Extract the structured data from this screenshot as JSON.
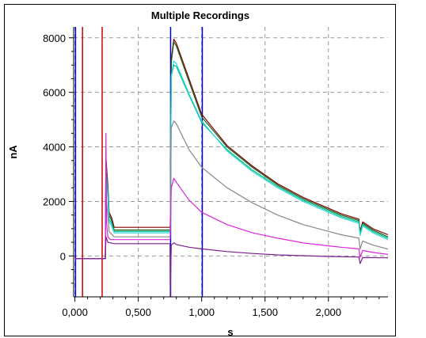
{
  "chart_data": {
    "type": "line",
    "title": "Multiple Recordings",
    "xlabel": "s",
    "ylabel": "nA",
    "xlim": [
      -0.01,
      2.47
    ],
    "ylim": [
      -1500,
      8400
    ],
    "grid": true,
    "grid_style": "dashed",
    "xticks": [
      0,
      0.5,
      1.0,
      1.5,
      2.0
    ],
    "xtick_labels": [
      "0,000",
      "0,500",
      "1,000",
      "1,500",
      "2,000"
    ],
    "yticks": [
      0,
      2000,
      4000,
      6000,
      8000
    ],
    "ytick_labels": [
      "0",
      "2000",
      "4000",
      "6000",
      "8000"
    ],
    "cursors": [
      {
        "x": 0.005,
        "color": "#0000cc"
      },
      {
        "x": 0.06,
        "color": "#cc0000"
      },
      {
        "x": 0.215,
        "color": "#cc0000"
      },
      {
        "x": 0.755,
        "color": "#0000cc"
      },
      {
        "x": 1.005,
        "color": "#0000cc"
      }
    ],
    "series": [
      {
        "color": "#800000",
        "values": [
          [
            0,
            -100
          ],
          [
            0.24,
            -100
          ],
          [
            0.245,
            3600
          ],
          [
            0.26,
            2600
          ],
          [
            0.27,
            1600
          ],
          [
            0.29,
            1400
          ],
          [
            0.31,
            1050
          ],
          [
            0.75,
            1050
          ],
          [
            0.752,
            1100
          ],
          [
            0.76,
            7200
          ],
          [
            0.78,
            7950
          ],
          [
            0.8,
            7800
          ],
          [
            0.9,
            6500
          ],
          [
            1.0,
            5200
          ],
          [
            1.2,
            4050
          ],
          [
            1.4,
            3300
          ],
          [
            1.6,
            2650
          ],
          [
            1.8,
            2150
          ],
          [
            2.0,
            1750
          ],
          [
            2.1,
            1550
          ],
          [
            2.24,
            1350
          ],
          [
            2.25,
            900
          ],
          [
            2.27,
            1250
          ],
          [
            2.35,
            1000
          ],
          [
            2.47,
            780
          ]
        ]
      },
      {
        "color": "#1a5c1a",
        "values": [
          [
            0,
            -100
          ],
          [
            0.24,
            -100
          ],
          [
            0.245,
            3500
          ],
          [
            0.26,
            2500
          ],
          [
            0.27,
            1500
          ],
          [
            0.29,
            1300
          ],
          [
            0.31,
            950
          ],
          [
            0.75,
            950
          ],
          [
            0.752,
            1000
          ],
          [
            0.76,
            7100
          ],
          [
            0.78,
            7850
          ],
          [
            0.8,
            7700
          ],
          [
            0.9,
            6400
          ],
          [
            1.0,
            5100
          ],
          [
            1.2,
            4000
          ],
          [
            1.4,
            3250
          ],
          [
            1.6,
            2600
          ],
          [
            1.8,
            2100
          ],
          [
            2.0,
            1700
          ],
          [
            2.1,
            1500
          ],
          [
            2.24,
            1300
          ],
          [
            2.25,
            850
          ],
          [
            2.27,
            1200
          ],
          [
            2.35,
            950
          ],
          [
            2.47,
            700
          ]
        ]
      },
      {
        "color": "#00bb88",
        "values": [
          [
            0,
            -100
          ],
          [
            0.24,
            -100
          ],
          [
            0.245,
            3200
          ],
          [
            0.26,
            2300
          ],
          [
            0.27,
            1350
          ],
          [
            0.29,
            1200
          ],
          [
            0.31,
            900
          ],
          [
            0.75,
            900
          ],
          [
            0.752,
            950
          ],
          [
            0.76,
            6600
          ],
          [
            0.78,
            7000
          ],
          [
            0.8,
            6950
          ],
          [
            0.9,
            5900
          ],
          [
            1.0,
            4900
          ],
          [
            1.2,
            3900
          ],
          [
            1.4,
            3150
          ],
          [
            1.6,
            2550
          ],
          [
            1.8,
            2050
          ],
          [
            2.0,
            1650
          ],
          [
            2.1,
            1450
          ],
          [
            2.24,
            1250
          ],
          [
            2.25,
            800
          ],
          [
            2.27,
            1150
          ],
          [
            2.35,
            900
          ],
          [
            2.47,
            650
          ]
        ]
      },
      {
        "color": "#22d8d8",
        "values": [
          [
            0,
            -100
          ],
          [
            0.24,
            -100
          ],
          [
            0.245,
            3000
          ],
          [
            0.26,
            2100
          ],
          [
            0.27,
            1250
          ],
          [
            0.29,
            1100
          ],
          [
            0.31,
            850
          ],
          [
            0.75,
            850
          ],
          [
            0.752,
            900
          ],
          [
            0.76,
            6600
          ],
          [
            0.78,
            7150
          ],
          [
            0.8,
            7050
          ],
          [
            0.9,
            5950
          ],
          [
            1.0,
            4950
          ],
          [
            1.2,
            3850
          ],
          [
            1.4,
            3100
          ],
          [
            1.6,
            2500
          ],
          [
            1.8,
            2000
          ],
          [
            2.0,
            1600
          ],
          [
            2.1,
            1400
          ],
          [
            2.24,
            1200
          ],
          [
            2.25,
            750
          ],
          [
            2.27,
            1100
          ],
          [
            2.35,
            850
          ],
          [
            2.47,
            600
          ]
        ]
      },
      {
        "color": "#888888",
        "values": [
          [
            0,
            -100
          ],
          [
            0.24,
            -100
          ],
          [
            0.245,
            2200
          ],
          [
            0.26,
            1500
          ],
          [
            0.27,
            900
          ],
          [
            0.29,
            800
          ],
          [
            0.31,
            700
          ],
          [
            0.75,
            700
          ],
          [
            0.752,
            750
          ],
          [
            0.76,
            4700
          ],
          [
            0.78,
            4950
          ],
          [
            0.8,
            4850
          ],
          [
            0.9,
            3900
          ],
          [
            1.0,
            3250
          ],
          [
            1.2,
            2500
          ],
          [
            1.4,
            1950
          ],
          [
            1.6,
            1500
          ],
          [
            1.8,
            1150
          ],
          [
            2.0,
            900
          ],
          [
            2.1,
            780
          ],
          [
            2.24,
            650
          ],
          [
            2.25,
            250
          ],
          [
            2.27,
            550
          ],
          [
            2.35,
            400
          ],
          [
            2.47,
            250
          ]
        ]
      },
      {
        "color": "#dd22dd",
        "values": [
          [
            0,
            -100
          ],
          [
            0.24,
            -100
          ],
          [
            0.245,
            4500
          ],
          [
            0.25,
            1200
          ],
          [
            0.26,
            700
          ],
          [
            0.28,
            600
          ],
          [
            0.31,
            600
          ],
          [
            0.75,
            600
          ],
          [
            0.752,
            650
          ],
          [
            0.76,
            2500
          ],
          [
            0.78,
            2850
          ],
          [
            0.8,
            2700
          ],
          [
            0.9,
            2050
          ],
          [
            1.0,
            1600
          ],
          [
            1.2,
            1150
          ],
          [
            1.4,
            850
          ],
          [
            1.6,
            650
          ],
          [
            1.8,
            480
          ],
          [
            2.0,
            370
          ],
          [
            2.1,
            320
          ],
          [
            2.24,
            260
          ],
          [
            2.25,
            -50
          ],
          [
            2.27,
            200
          ],
          [
            2.35,
            130
          ],
          [
            2.47,
            60
          ]
        ]
      },
      {
        "color": "#7a1f8c",
        "values": [
          [
            0,
            -100
          ],
          [
            0.24,
            -100
          ],
          [
            0.245,
            700
          ],
          [
            0.26,
            500
          ],
          [
            0.31,
            450
          ],
          [
            0.75,
            450
          ],
          [
            0.752,
            -1500
          ],
          [
            0.76,
            400
          ],
          [
            0.78,
            480
          ],
          [
            0.8,
            420
          ],
          [
            0.9,
            320
          ],
          [
            1.0,
            260
          ],
          [
            1.2,
            160
          ],
          [
            1.4,
            90
          ],
          [
            1.6,
            40
          ],
          [
            1.8,
            10
          ],
          [
            2.0,
            -20
          ],
          [
            2.24,
            -40
          ],
          [
            2.25,
            -280
          ],
          [
            2.27,
            -60
          ],
          [
            2.47,
            -70
          ]
        ]
      }
    ]
  }
}
